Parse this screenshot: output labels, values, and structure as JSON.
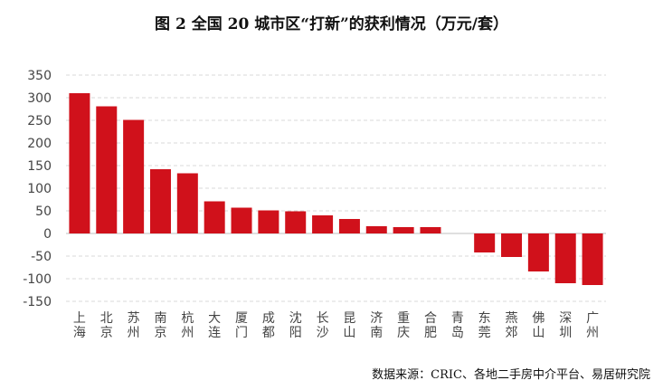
{
  "title": "图 2   全国 20 城市区“打新”的获利情况（万元/套）",
  "source": "数据来源：CRIC、各地二手房中介平台、易居研究院",
  "colors": {
    "bar": "#d0111b",
    "grid": "#d9d9d9",
    "zero_line": "#bfbfbf"
  },
  "chart_data": {
    "type": "bar",
    "title": "图 2   全国 20 城市区“打新”的获利情况（万元/套）",
    "xlabel": "",
    "ylabel": "",
    "ylim": [
      -150,
      350
    ],
    "yticks": [
      350,
      300,
      250,
      200,
      150,
      100,
      50,
      0,
      -50,
      -100,
      -150
    ],
    "grid": true,
    "categories": [
      "上海",
      "北京",
      "苏州",
      "南京",
      "杭州",
      "大连",
      "厦门",
      "成都",
      "沈阳",
      "长沙",
      "昆山",
      "济南",
      "重庆",
      "合肥",
      "青岛",
      "东莞",
      "燕郊",
      "佛山",
      "深圳",
      "广州"
    ],
    "values": [
      310,
      281,
      251,
      142,
      133,
      71,
      57,
      51,
      49,
      40,
      32,
      16,
      14,
      14,
      0,
      -42,
      -52,
      -84,
      -110,
      -114
    ]
  }
}
